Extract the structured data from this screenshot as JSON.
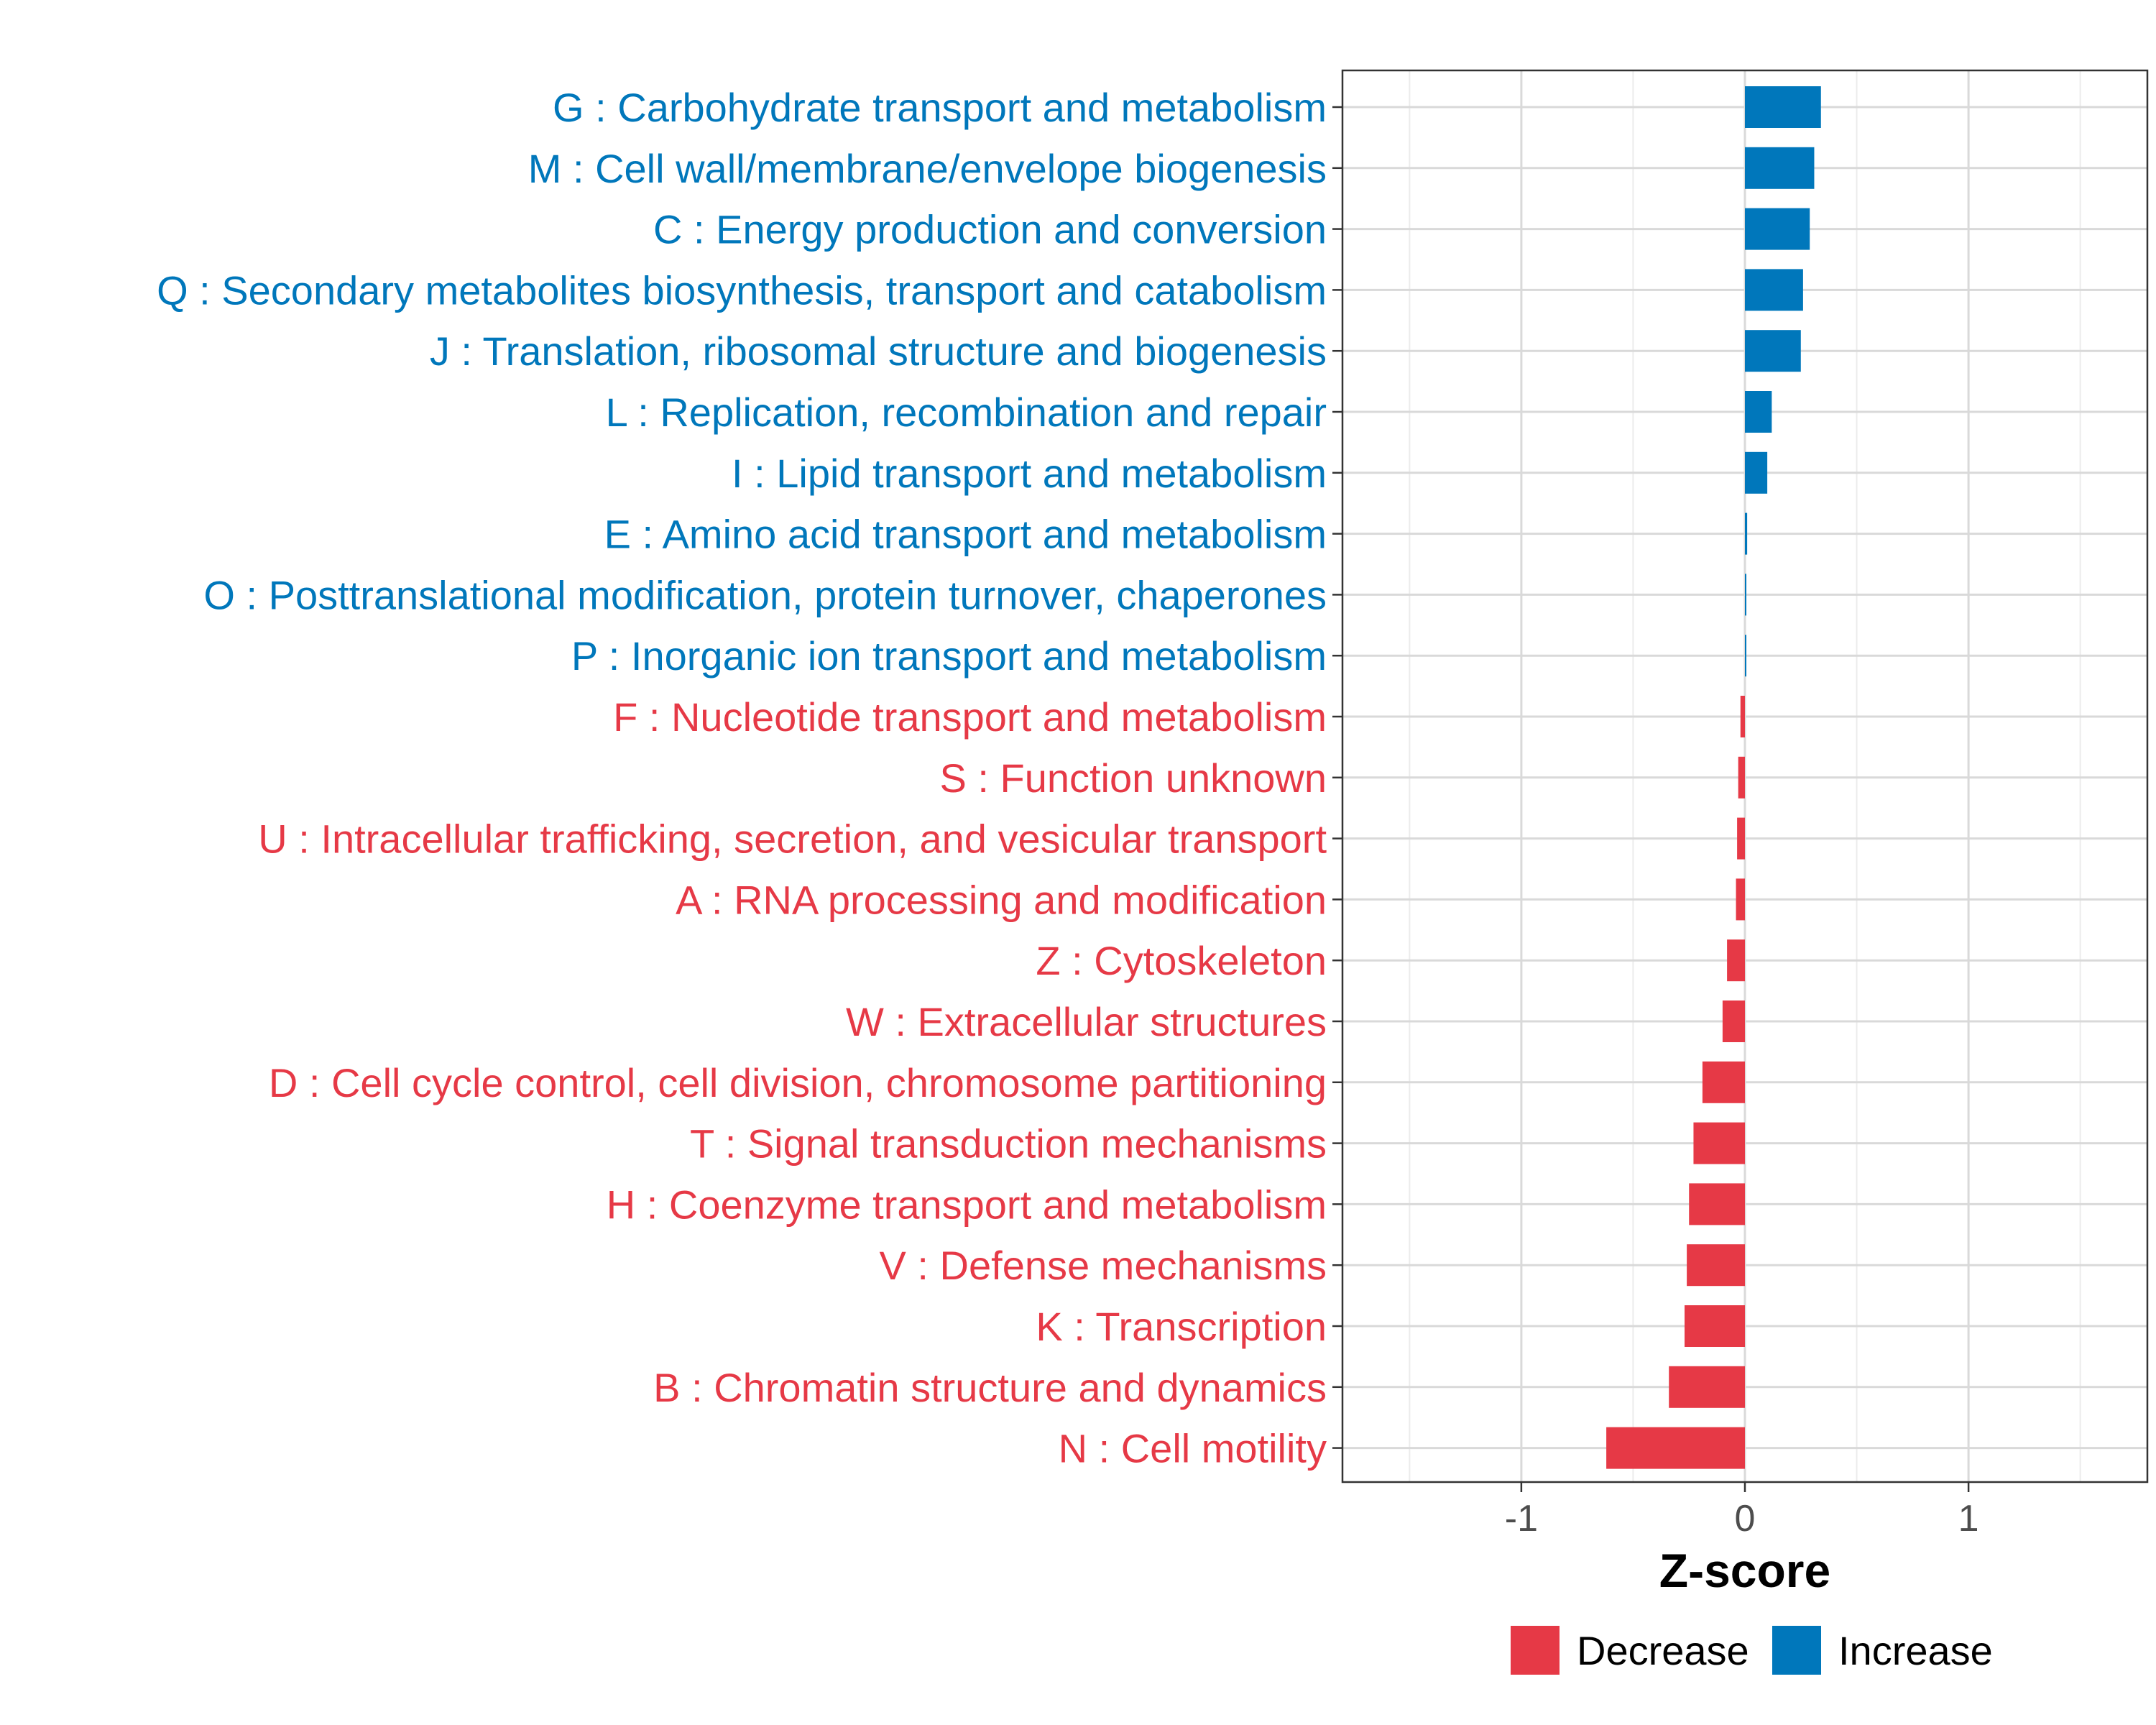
{
  "chart_data": {
    "type": "bar",
    "orientation": "horizontal",
    "title": "",
    "xlabel": "Z-score",
    "ylabel": "",
    "xlim": [
      -1.8,
      1.8
    ],
    "x_ticks": [
      -1,
      0,
      1
    ],
    "x_tick_labels": [
      "-1",
      "0",
      "1"
    ],
    "grid": true,
    "legend_position": "bottom",
    "colors": {
      "Decrease": "#e63946",
      "Increase": "#0077bb"
    },
    "legend": [
      {
        "name": "Decrease",
        "color": "#e63946"
      },
      {
        "name": "Increase",
        "color": "#0077bb"
      }
    ],
    "bars": [
      {
        "label": "G : Carbohydrate transport and metabolism",
        "value": 0.34,
        "group": "Increase"
      },
      {
        "label": "M : Cell wall/membrane/envelope biogenesis",
        "value": 0.31,
        "group": "Increase"
      },
      {
        "label": "C : Energy production and conversion",
        "value": 0.29,
        "group": "Increase"
      },
      {
        "label": "Q : Secondary metabolites biosynthesis, transport and catabolism",
        "value": 0.26,
        "group": "Increase"
      },
      {
        "label": "J : Translation, ribosomal structure and biogenesis",
        "value": 0.25,
        "group": "Increase"
      },
      {
        "label": "L : Replication, recombination and repair",
        "value": 0.12,
        "group": "Increase"
      },
      {
        "label": "I : Lipid transport and metabolism",
        "value": 0.1,
        "group": "Increase"
      },
      {
        "label": "E : Amino acid transport and metabolism",
        "value": 0.01,
        "group": "Increase"
      },
      {
        "label": "O : Posttranslational modification, protein turnover, chaperones",
        "value": 0.005,
        "group": "Increase"
      },
      {
        "label": "P : Inorganic ion transport and metabolism",
        "value": 0.002,
        "group": "Increase"
      },
      {
        "label": "F : Nucleotide transport and metabolism",
        "value": -0.02,
        "group": "Decrease"
      },
      {
        "label": "S : Function unknown",
        "value": -0.03,
        "group": "Decrease"
      },
      {
        "label": "U : Intracellular trafficking, secretion, and vesicular transport",
        "value": -0.035,
        "group": "Decrease"
      },
      {
        "label": "A : RNA processing and modification",
        "value": -0.04,
        "group": "Decrease"
      },
      {
        "label": "Z : Cytoskeleton",
        "value": -0.08,
        "group": "Decrease"
      },
      {
        "label": "W : Extracellular structures",
        "value": -0.1,
        "group": "Decrease"
      },
      {
        "label": "D : Cell cycle control, cell division, chromosome partitioning",
        "value": -0.19,
        "group": "Decrease"
      },
      {
        "label": "T : Signal transduction mechanisms",
        "value": -0.23,
        "group": "Decrease"
      },
      {
        "label": "H : Coenzyme transport and metabolism",
        "value": -0.25,
        "group": "Decrease"
      },
      {
        "label": "V : Defense mechanisms",
        "value": -0.26,
        "group": "Decrease"
      },
      {
        "label": "K : Transcription",
        "value": -0.27,
        "group": "Decrease"
      },
      {
        "label": "B : Chromatin structure and dynamics",
        "value": -0.34,
        "group": "Decrease"
      },
      {
        "label": "N : Cell motility",
        "value": -0.62,
        "group": "Decrease"
      }
    ]
  }
}
